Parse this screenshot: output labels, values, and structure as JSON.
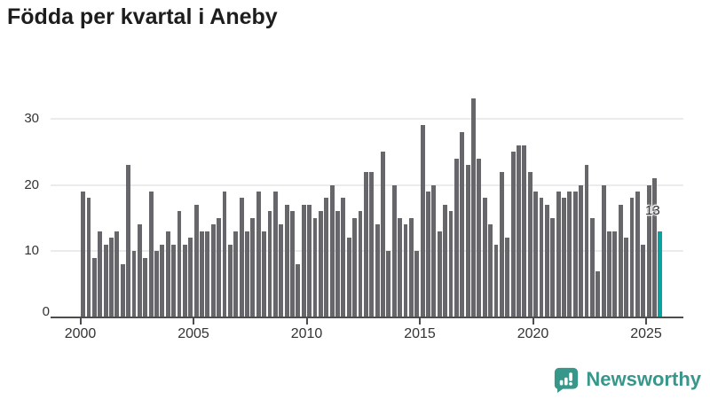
{
  "title": "Födda per kvartal i Aneby",
  "footer": {
    "brand": "Newsworthy"
  },
  "colors": {
    "bar": "#67676b",
    "highlight": "#0aa2a0",
    "grid": "#ebebeb",
    "axis": "#4d4d4d",
    "text": "#333333",
    "brand": "#38978b"
  },
  "chart_data": {
    "type": "bar",
    "title": "Födda per kvartal i Aneby",
    "xlabel": "",
    "ylabel": "",
    "frequency": "quarterly",
    "start_period": "2000-Q1",
    "end_period": "2025-Q3",
    "ylim": [
      0,
      35
    ],
    "grid": "horizontal",
    "legend": "none",
    "y_ticks": [
      0,
      10,
      20,
      30
    ],
    "y_tick_labels": [
      "0",
      "10",
      "20",
      "30"
    ],
    "x_tick_labels": [
      "2000",
      "2005",
      "2010",
      "2015",
      "2020",
      "2025"
    ],
    "highlight_index": 102,
    "last_label": "13",
    "series": [
      {
        "name": "Födda",
        "values": [
          19,
          18,
          9,
          13,
          11,
          12,
          13,
          8,
          23,
          10,
          14,
          9,
          19,
          10,
          11,
          13,
          11,
          16,
          11,
          12,
          17,
          13,
          13,
          14,
          15,
          19,
          11,
          13,
          18,
          13,
          15,
          19,
          13,
          16,
          19,
          14,
          17,
          16,
          8,
          17,
          17,
          15,
          16,
          18,
          20,
          16,
          18,
          12,
          15,
          16,
          22,
          22,
          14,
          25,
          10,
          20,
          15,
          14,
          15,
          10,
          29,
          19,
          20,
          13,
          17,
          16,
          24,
          28,
          23,
          33,
          24,
          18,
          14,
          11,
          22,
          12,
          25,
          26,
          26,
          22,
          19,
          18,
          17,
          15,
          19,
          18,
          19,
          19,
          20,
          23,
          15,
          7,
          20,
          13,
          13,
          17,
          12,
          18,
          19,
          11,
          20,
          21,
          13
        ]
      }
    ]
  }
}
